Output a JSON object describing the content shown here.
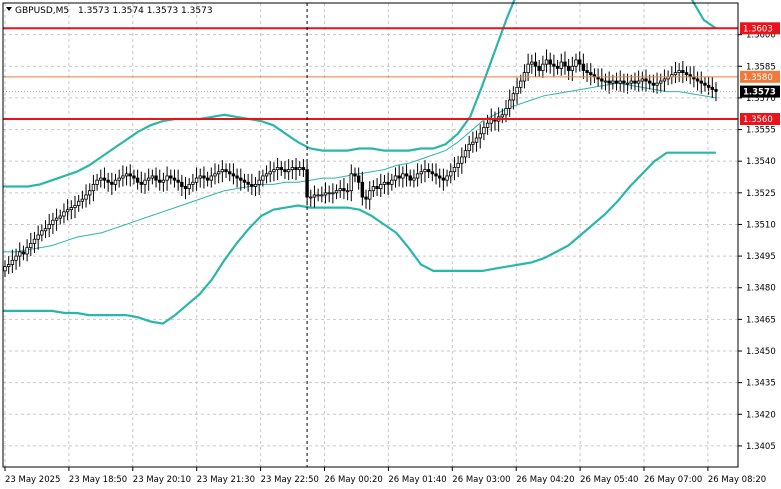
{
  "header": {
    "symbol": "GBPUSD,M5",
    "ohlc": "1.3573 1.3574 1.3573 1.3573"
  },
  "colors": {
    "background": "#ffffff",
    "grid": "#c8c8c8",
    "axis": "#000000",
    "candle": "#000000",
    "band": "#2ab7a9",
    "mid_band": "#2ab7a9",
    "level_strong": "#e8141c",
    "level_weak": "#f07a3a",
    "current_price_bg": "#000000",
    "session_separator": "#000000"
  },
  "chart_data": {
    "type": "candlestick",
    "ylim": [
      1.3395,
      1.3615
    ],
    "y_ticks": [
      "1.3600",
      "1.3585",
      "1.3570",
      "1.3555",
      "1.3540",
      "1.3525",
      "1.3510",
      "1.3495",
      "1.3480",
      "1.3465",
      "1.3450",
      "1.3435",
      "1.3420",
      "1.3405"
    ],
    "x_ticks": [
      "23 May 2025",
      "23 May 18:50",
      "23 May 20:10",
      "23 May 21:30",
      "23 May 22:50",
      "26 May 00:20",
      "26 May 01:40",
      "26 May 03:00",
      "26 May 04:20",
      "26 May 05:40",
      "26 May 07:00",
      "26 May 08:20"
    ],
    "levels": [
      {
        "label": "1.3603",
        "value": 1.3603,
        "style": "strong"
      },
      {
        "label": "1.3580",
        "value": 1.358,
        "style": "weak"
      },
      {
        "label": "1.3560",
        "value": 1.356,
        "style": "strong"
      }
    ],
    "current_price": {
      "label": "1.3573",
      "value": 1.3573
    },
    "session_separator_index": 82,
    "bands": {
      "upper": [
        1.3528,
        1.3528,
        1.3528,
        1.3529,
        1.3531,
        1.3533,
        1.3535,
        1.3538,
        1.3542,
        1.3546,
        1.355,
        1.3554,
        1.3557,
        1.3559,
        1.356,
        1.356,
        1.356,
        1.3561,
        1.3562,
        1.3561,
        1.356,
        1.3559,
        1.3557,
        1.3553,
        1.3549,
        1.3546,
        1.3545,
        1.3545,
        1.3545,
        1.3546,
        1.3546,
        1.3545,
        1.3545,
        1.3545,
        1.3546,
        1.3546,
        1.3548,
        1.3553,
        1.3561,
        1.3576,
        1.3592,
        1.3608,
        1.3622,
        1.363,
        1.363,
        1.363,
        1.363,
        1.363,
        1.363,
        1.363,
        1.363,
        1.363,
        1.363,
        1.363,
        1.363,
        1.3624,
        1.3617,
        1.3607,
        1.3603
      ],
      "middle": [
        1.3497,
        1.3497,
        1.3498,
        1.3499,
        1.35,
        1.3502,
        1.3504,
        1.3505,
        1.3506,
        1.3508,
        1.351,
        1.3512,
        1.3514,
        1.3516,
        1.3518,
        1.352,
        1.3522,
        1.3524,
        1.3526,
        1.3527,
        1.3528,
        1.3529,
        1.3529,
        1.353,
        1.353,
        1.3531,
        1.3532,
        1.3532,
        1.3533,
        1.3534,
        1.3535,
        1.3536,
        1.3538,
        1.3539,
        1.3541,
        1.3543,
        1.3545,
        1.3549,
        1.3554,
        1.3559,
        1.3562,
        1.3565,
        1.3567,
        1.3569,
        1.3571,
        1.3572,
        1.3573,
        1.3574,
        1.3575,
        1.3576,
        1.3577,
        1.3576,
        1.3575,
        1.3574,
        1.3573,
        1.3573,
        1.3572,
        1.3571,
        1.357
      ],
      "lower": [
        1.3469,
        1.3469,
        1.3469,
        1.3469,
        1.3469,
        1.3468,
        1.3468,
        1.3467,
        1.3467,
        1.3467,
        1.3467,
        1.3466,
        1.3464,
        1.3463,
        1.3467,
        1.3472,
        1.3477,
        1.3484,
        1.3493,
        1.3501,
        1.3508,
        1.3514,
        1.3517,
        1.3518,
        1.3519,
        1.3518,
        1.3518,
        1.3518,
        1.3518,
        1.3517,
        1.3514,
        1.351,
        1.3506,
        1.3499,
        1.3491,
        1.3488,
        1.3488,
        1.3488,
        1.3488,
        1.3488,
        1.3489,
        1.349,
        1.3491,
        1.3492,
        1.3494,
        1.3497,
        1.35,
        1.3505,
        1.351,
        1.3515,
        1.3521,
        1.3528,
        1.3534,
        1.354,
        1.3544,
        1.3544,
        1.3544,
        1.3544,
        1.3544
      ]
    },
    "closes": [
      1.349,
      1.3491,
      1.3493,
      1.3495,
      1.3497,
      1.3496,
      1.3499,
      1.3501,
      1.3503,
      1.3505,
      1.3507,
      1.3508,
      1.351,
      1.3512,
      1.3513,
      1.3514,
      1.3516,
      1.3517,
      1.3518,
      1.3519,
      1.3521,
      1.3522,
      1.3524,
      1.3526,
      1.3529,
      1.3531,
      1.3532,
      1.3531,
      1.353,
      1.3529,
      1.3531,
      1.3532,
      1.3533,
      1.3534,
      1.3533,
      1.3532,
      1.353,
      1.3529,
      1.3531,
      1.3532,
      1.3533,
      1.3531,
      1.353,
      1.3531,
      1.3533,
      1.3532,
      1.3531,
      1.353,
      1.3528,
      1.3527,
      1.3529,
      1.353,
      1.3532,
      1.3533,
      1.3532,
      1.3531,
      1.3533,
      1.3534,
      1.3535,
      1.3536,
      1.3535,
      1.3534,
      1.3533,
      1.3532,
      1.3531,
      1.353,
      1.3529,
      1.3528,
      1.3529,
      1.3531,
      1.3533,
      1.3534,
      1.3535,
      1.3536,
      1.3537,
      1.3536,
      1.3535,
      1.3536,
      1.3537,
      1.3536,
      1.3537,
      1.3536,
      1.3523,
      1.3523,
      1.3524,
      1.3524,
      1.3524,
      1.3525,
      1.3525,
      1.3525,
      1.3526,
      1.3527,
      1.3526,
      1.3526,
      1.3534,
      1.3533,
      1.353,
      1.3523,
      1.3522,
      1.3526,
      1.3528,
      1.3527,
      1.3529,
      1.353,
      1.3529,
      1.3531,
      1.3533,
      1.3532,
      1.3534,
      1.3533,
      1.3531,
      1.3532,
      1.3534,
      1.3535,
      1.3536,
      1.3535,
      1.3534,
      1.3533,
      1.3532,
      1.3531,
      1.3533,
      1.3535,
      1.3537,
      1.3539,
      1.3542,
      1.3545,
      1.3548,
      1.3549,
      1.3551,
      1.3553,
      1.3556,
      1.3558,
      1.356,
      1.3559,
      1.3561,
      1.3562,
      1.3565,
      1.3569,
      1.3572,
      1.3575,
      1.3578,
      1.3582,
      1.3586,
      1.3587,
      1.3585,
      1.3583,
      1.3586,
      1.3588,
      1.3586,
      1.3585,
      1.3584,
      1.3587,
      1.3585,
      1.3583,
      1.3585,
      1.3588,
      1.3586,
      1.3583,
      1.3582,
      1.3581,
      1.358,
      1.3579,
      1.3578,
      1.3578,
      1.3577,
      1.3578,
      1.3577,
      1.3578,
      1.3577,
      1.3577,
      1.3578,
      1.3577,
      1.3578,
      1.3579,
      1.3578,
      1.3577,
      1.3576,
      1.3577,
      1.3578,
      1.3579,
      1.358,
      1.3581,
      1.3582,
      1.3583,
      1.3582,
      1.3581,
      1.358,
      1.3579,
      1.3578,
      1.3577,
      1.3576,
      1.3575,
      1.3574,
      1.3573
    ]
  }
}
